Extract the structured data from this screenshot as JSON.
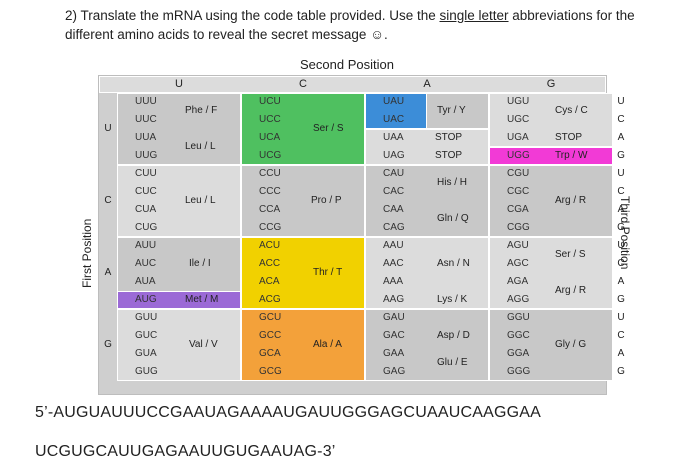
{
  "question": {
    "number": "2)",
    "text_before": "Translate the mRNA using the code table provided.  Use the ",
    "underlined": "single letter",
    "text_after": " abbreviations for the different amino acids to reveal the secret message",
    "smiley": "☺."
  },
  "table": {
    "second_position_title": "Second Position",
    "first_position_title": "First Position",
    "third_position_title": "Third Position",
    "second_headers": [
      "U",
      "C",
      "A",
      "G"
    ],
    "first_labels": [
      "U",
      "C",
      "A",
      "G"
    ],
    "third_labels": [
      "U",
      "C",
      "A",
      "G",
      "U",
      "C",
      "A",
      "G",
      "U",
      "C",
      "A",
      "G",
      "U",
      "C",
      "A",
      "G"
    ],
    "colors": {
      "grey": "#c8c8c8",
      "lightgrey": "#dcdcdc",
      "green": "#4fc060",
      "orange": "#f3a13a",
      "blue": "#3c8dd8",
      "yellow": "#f1d100",
      "magenta": "#f23ad6",
      "purple": "#9b6ad6"
    },
    "columns": [
      {
        "codons": [
          "UUU",
          "UUC",
          "UUA",
          "UUG",
          "CUU",
          "CUC",
          "CUA",
          "CUG",
          "AUU",
          "AUC",
          "AUA",
          "AUG",
          "GUU",
          "GUC",
          "GUA",
          "GUG"
        ],
        "amino": [
          {
            "label": "Phe / F"
          },
          {
            "label": "Leu / L"
          },
          {
            "label": "Leu / L"
          },
          {
            "label": "Ile / I"
          },
          {
            "label": "Met / M"
          },
          {
            "label": "Val / V"
          }
        ]
      },
      {
        "codons": [
          "UCU",
          "UCC",
          "UCA",
          "UCG",
          "CCU",
          "CCC",
          "CCA",
          "CCG",
          "ACU",
          "ACC",
          "ACA",
          "ACG",
          "GCU",
          "GCC",
          "GCA",
          "GCG"
        ],
        "amino": [
          {
            "label": "Ser / S"
          },
          {
            "label": "Pro / P"
          },
          {
            "label": "Thr / T"
          },
          {
            "label": "Ala / A"
          }
        ]
      },
      {
        "codons": [
          "UAU",
          "UAC",
          "UAA",
          "UAG",
          "CAU",
          "CAC",
          "CAA",
          "CAG",
          "AAU",
          "AAC",
          "AAA",
          "AAG",
          "GAU",
          "GAC",
          "GAA",
          "GAG"
        ],
        "amino": [
          {
            "label": "Tyr / Y"
          },
          {
            "label": "STOP"
          },
          {
            "label": "STOP"
          },
          {
            "label": "His / H"
          },
          {
            "label": "Gln / Q"
          },
          {
            "label": "Asn / N"
          },
          {
            "label": "Lys / K"
          },
          {
            "label": "Asp / D"
          },
          {
            "label": "Glu / E"
          }
        ]
      },
      {
        "codons": [
          "UGU",
          "UGC",
          "UGA",
          "UGG",
          "CGU",
          "CGC",
          "CGA",
          "CGG",
          "AGU",
          "AGC",
          "AGA",
          "AGG",
          "GGU",
          "GGC",
          "GGA",
          "GGG"
        ],
        "amino": [
          {
            "label": "Cys / C"
          },
          {
            "label": "STOP"
          },
          {
            "label": "Trp / W"
          },
          {
            "label": "Arg / R"
          },
          {
            "label": "Ser / S"
          },
          {
            "label": "Arg / R"
          },
          {
            "label": "Gly / G"
          }
        ]
      }
    ]
  },
  "sequence": {
    "line1": "5’-AUGUAUUUCCGAAUAGAAAAUGAUUGGGAGCUAAUCAAGGAA",
    "line2": "UCGUGCAUUGAGAAUUGUGAAUAG-3’"
  }
}
